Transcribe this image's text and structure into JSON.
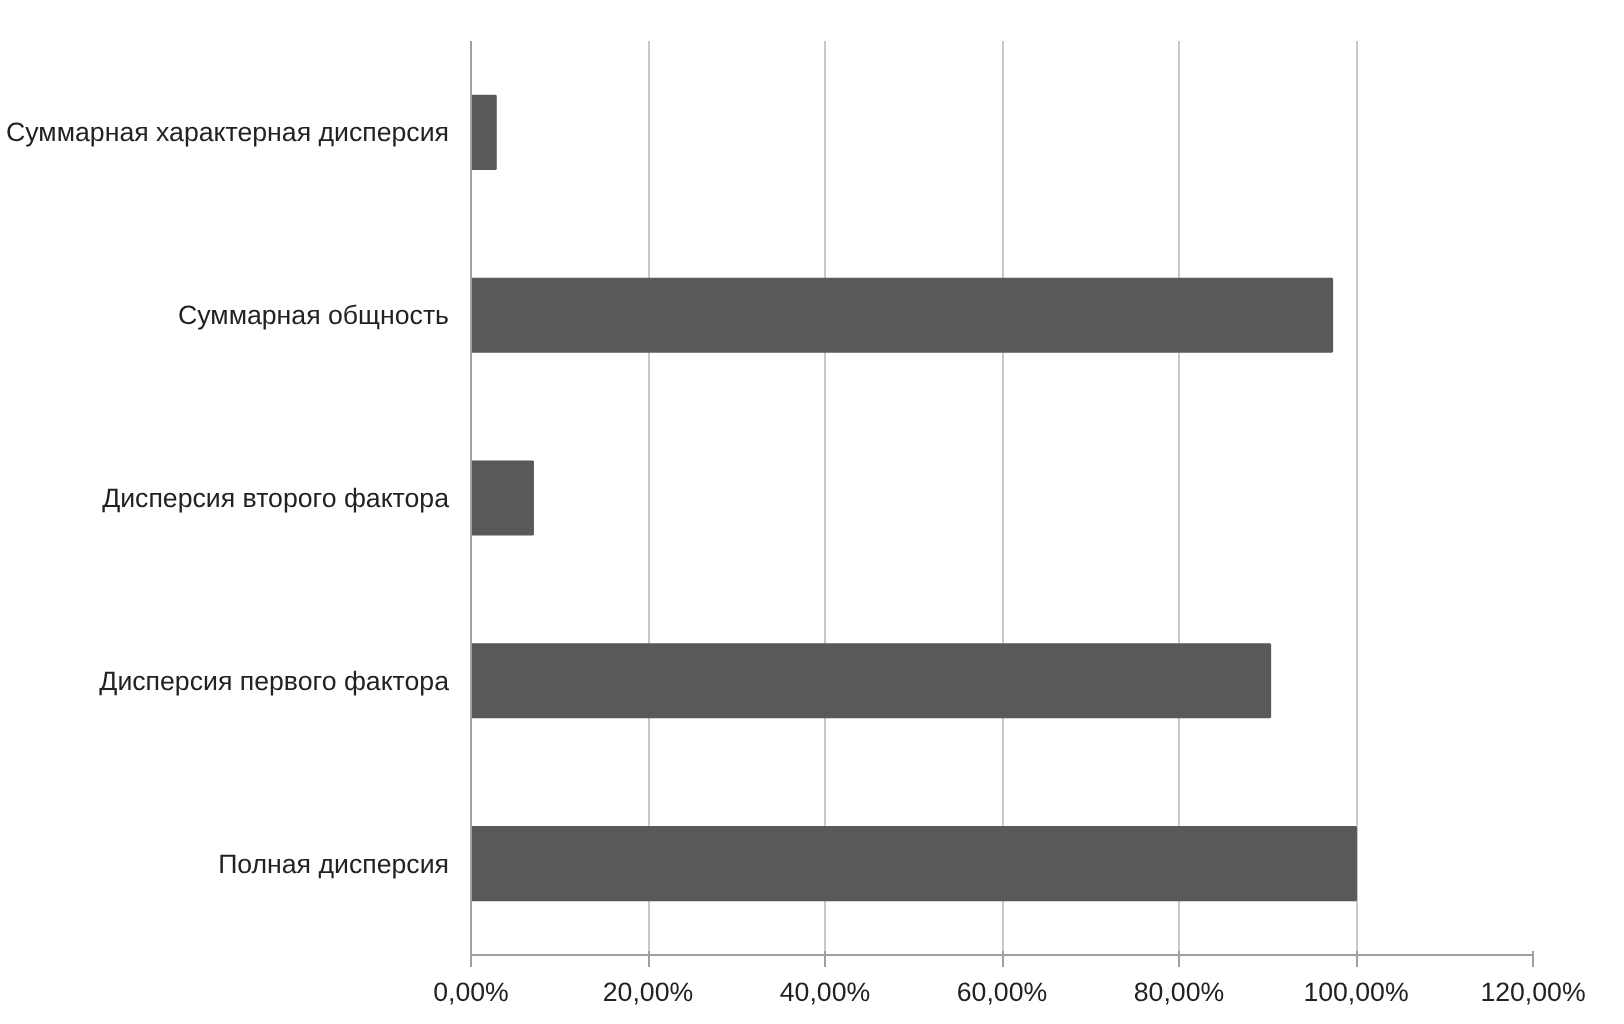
{
  "chart_data": {
    "type": "bar",
    "orientation": "horizontal",
    "categories": [
      "Суммарная характерная дисперсия",
      "Суммарная общность",
      "Дисперсия второго фактора",
      "Дисперсия первого фактора",
      "Полная дисперсия"
    ],
    "values": [
      2.8,
      97.3,
      7.0,
      90.3,
      100
    ],
    "color": "#595959",
    "xlim": [
      0,
      120
    ],
    "xticks": [
      {
        "value": 0,
        "label": "0,00%"
      },
      {
        "value": 20,
        "label": "20,00%"
      },
      {
        "value": 40,
        "label": "40,00%"
      },
      {
        "value": 60,
        "label": "60,00%"
      },
      {
        "value": 80,
        "label": "80,00%"
      },
      {
        "value": 100,
        "label": "100,00%"
      },
      {
        "value": 120,
        "label": "120,00%"
      }
    ],
    "grid": "x"
  }
}
